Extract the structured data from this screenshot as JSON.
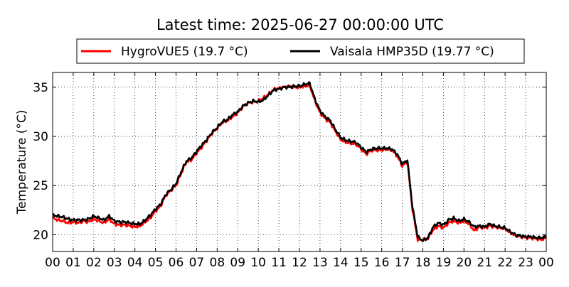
{
  "chart_data": {
    "type": "line",
    "title": "Latest time: 2025-06-27 00:00:00 UTC",
    "xlabel": "",
    "ylabel": "Temperature (°C)",
    "xlim": [
      0,
      24
    ],
    "ylim": [
      18.3,
      36.5
    ],
    "x_ticks": [
      0,
      1,
      2,
      3,
      4,
      5,
      6,
      7,
      8,
      9,
      10,
      11,
      12,
      13,
      14,
      15,
      16,
      17,
      18,
      19,
      20,
      21,
      22,
      23,
      24
    ],
    "x_tick_labels": [
      "00",
      "01",
      "02",
      "03",
      "04",
      "05",
      "06",
      "07",
      "08",
      "09",
      "10",
      "11",
      "12",
      "13",
      "14",
      "15",
      "16",
      "17",
      "18",
      "19",
      "20",
      "21",
      "22",
      "23",
      "00"
    ],
    "y_ticks": [
      20,
      25,
      30,
      35
    ],
    "y_tick_labels": [
      "20",
      "25",
      "30",
      "35"
    ],
    "grid": true,
    "legend_position": "top-center",
    "series": [
      {
        "name": "HygroVUE5 (19.7 °C)",
        "color": "#ff0000",
        "x": [
          0,
          0.25,
          0.5,
          0.75,
          1,
          1.25,
          1.5,
          1.75,
          2,
          2.25,
          2.5,
          2.75,
          3,
          3.25,
          3.5,
          3.75,
          4,
          4.25,
          4.5,
          4.75,
          5,
          5.25,
          5.5,
          5.75,
          6,
          6.25,
          6.5,
          6.75,
          7,
          7.25,
          7.5,
          7.75,
          8,
          8.25,
          8.5,
          8.75,
          9,
          9.25,
          9.5,
          9.75,
          10,
          10.25,
          10.5,
          10.75,
          11,
          11.25,
          11.5,
          11.75,
          12,
          12.25,
          12.5,
          12.75,
          13,
          13.25,
          13.5,
          13.75,
          14,
          14.25,
          14.5,
          14.75,
          15,
          15.25,
          15.5,
          15.75,
          16,
          16.25,
          16.5,
          16.75,
          17,
          17.25,
          17.5,
          17.75,
          18,
          18.25,
          18.5,
          18.75,
          19,
          19.25,
          19.5,
          19.75,
          20,
          20.25,
          20.5,
          20.75,
          21,
          21.25,
          21.5,
          21.75,
          22,
          22.25,
          22.5,
          22.75,
          23,
          23.25,
          23.5,
          23.75,
          24
        ],
        "y": [
          21.7,
          21.5,
          21.4,
          21.2,
          21.3,
          21.2,
          21.4,
          21.3,
          21.6,
          21.4,
          21.2,
          21.6,
          21.1,
          21.0,
          21.0,
          20.9,
          20.8,
          20.9,
          21.3,
          21.7,
          22.4,
          22.9,
          24.0,
          24.5,
          25.0,
          26.2,
          27.4,
          27.6,
          28.3,
          28.9,
          29.6,
          30.3,
          30.8,
          31.4,
          31.6,
          32.0,
          32.4,
          33.0,
          33.4,
          33.5,
          33.6,
          33.9,
          34.3,
          34.8,
          34.9,
          35.0,
          35.1,
          35.0,
          35.0,
          35.1,
          35.2,
          33.6,
          32.4,
          31.8,
          31.4,
          30.5,
          29.7,
          29.4,
          29.3,
          29.2,
          28.7,
          28.2,
          28.6,
          28.6,
          28.6,
          28.7,
          28.6,
          28.0,
          27.0,
          27.4,
          22.5,
          19.5,
          19.5,
          19.6,
          20.5,
          20.9,
          20.7,
          21.2,
          21.4,
          21.2,
          21.4,
          21.1,
          20.4,
          20.8,
          20.7,
          20.9,
          20.8,
          20.7,
          20.6,
          20.2,
          19.9,
          19.8,
          19.7,
          19.7,
          19.6,
          19.5,
          19.7
        ]
      },
      {
        "name": "Vaisala HMP35D (19.77 °C)",
        "color": "#000000",
        "x": [
          0,
          0.25,
          0.5,
          0.75,
          1,
          1.25,
          1.5,
          1.75,
          2,
          2.25,
          2.5,
          2.75,
          3,
          3.25,
          3.5,
          3.75,
          4,
          4.25,
          4.5,
          4.75,
          5,
          5.25,
          5.5,
          5.75,
          6,
          6.25,
          6.5,
          6.75,
          7,
          7.25,
          7.5,
          7.75,
          8,
          8.25,
          8.5,
          8.75,
          9,
          9.25,
          9.5,
          9.75,
          10,
          10.25,
          10.5,
          10.75,
          11,
          11.25,
          11.5,
          11.75,
          12,
          12.25,
          12.5,
          12.75,
          13,
          13.25,
          13.5,
          13.75,
          14,
          14.25,
          14.5,
          14.75,
          15,
          15.25,
          15.5,
          15.75,
          16,
          16.25,
          16.5,
          16.75,
          17,
          17.25,
          17.5,
          17.75,
          18,
          18.25,
          18.5,
          18.75,
          19,
          19.25,
          19.5,
          19.75,
          20,
          20.25,
          20.5,
          20.75,
          21,
          21.25,
          21.5,
          21.75,
          22,
          22.25,
          22.5,
          22.75,
          23,
          23.25,
          23.5,
          23.75,
          24
        ],
        "y": [
          22.0,
          21.9,
          21.8,
          21.6,
          21.5,
          21.5,
          21.5,
          21.6,
          21.9,
          21.7,
          21.5,
          21.9,
          21.4,
          21.3,
          21.3,
          21.2,
          21.1,
          21.1,
          21.5,
          22.0,
          22.6,
          23.1,
          24.1,
          24.6,
          25.2,
          26.4,
          27.5,
          27.8,
          28.5,
          29.1,
          29.7,
          30.4,
          30.9,
          31.5,
          31.7,
          32.2,
          32.5,
          33.1,
          33.4,
          33.6,
          33.5,
          33.7,
          34.2,
          34.7,
          34.8,
          35.0,
          35.0,
          35.1,
          35.1,
          35.3,
          35.4,
          33.8,
          32.6,
          32.0,
          31.6,
          30.7,
          29.9,
          29.6,
          29.5,
          29.4,
          28.9,
          28.4,
          28.7,
          28.8,
          28.8,
          28.8,
          28.7,
          28.2,
          27.2,
          27.6,
          22.8,
          19.8,
          19.4,
          19.7,
          20.8,
          21.2,
          21.0,
          21.5,
          21.7,
          21.4,
          21.6,
          21.3,
          20.8,
          20.9,
          20.8,
          21.1,
          20.9,
          20.8,
          20.7,
          20.3,
          20.0,
          19.9,
          19.8,
          19.8,
          19.7,
          19.7,
          19.8
        ]
      }
    ]
  }
}
